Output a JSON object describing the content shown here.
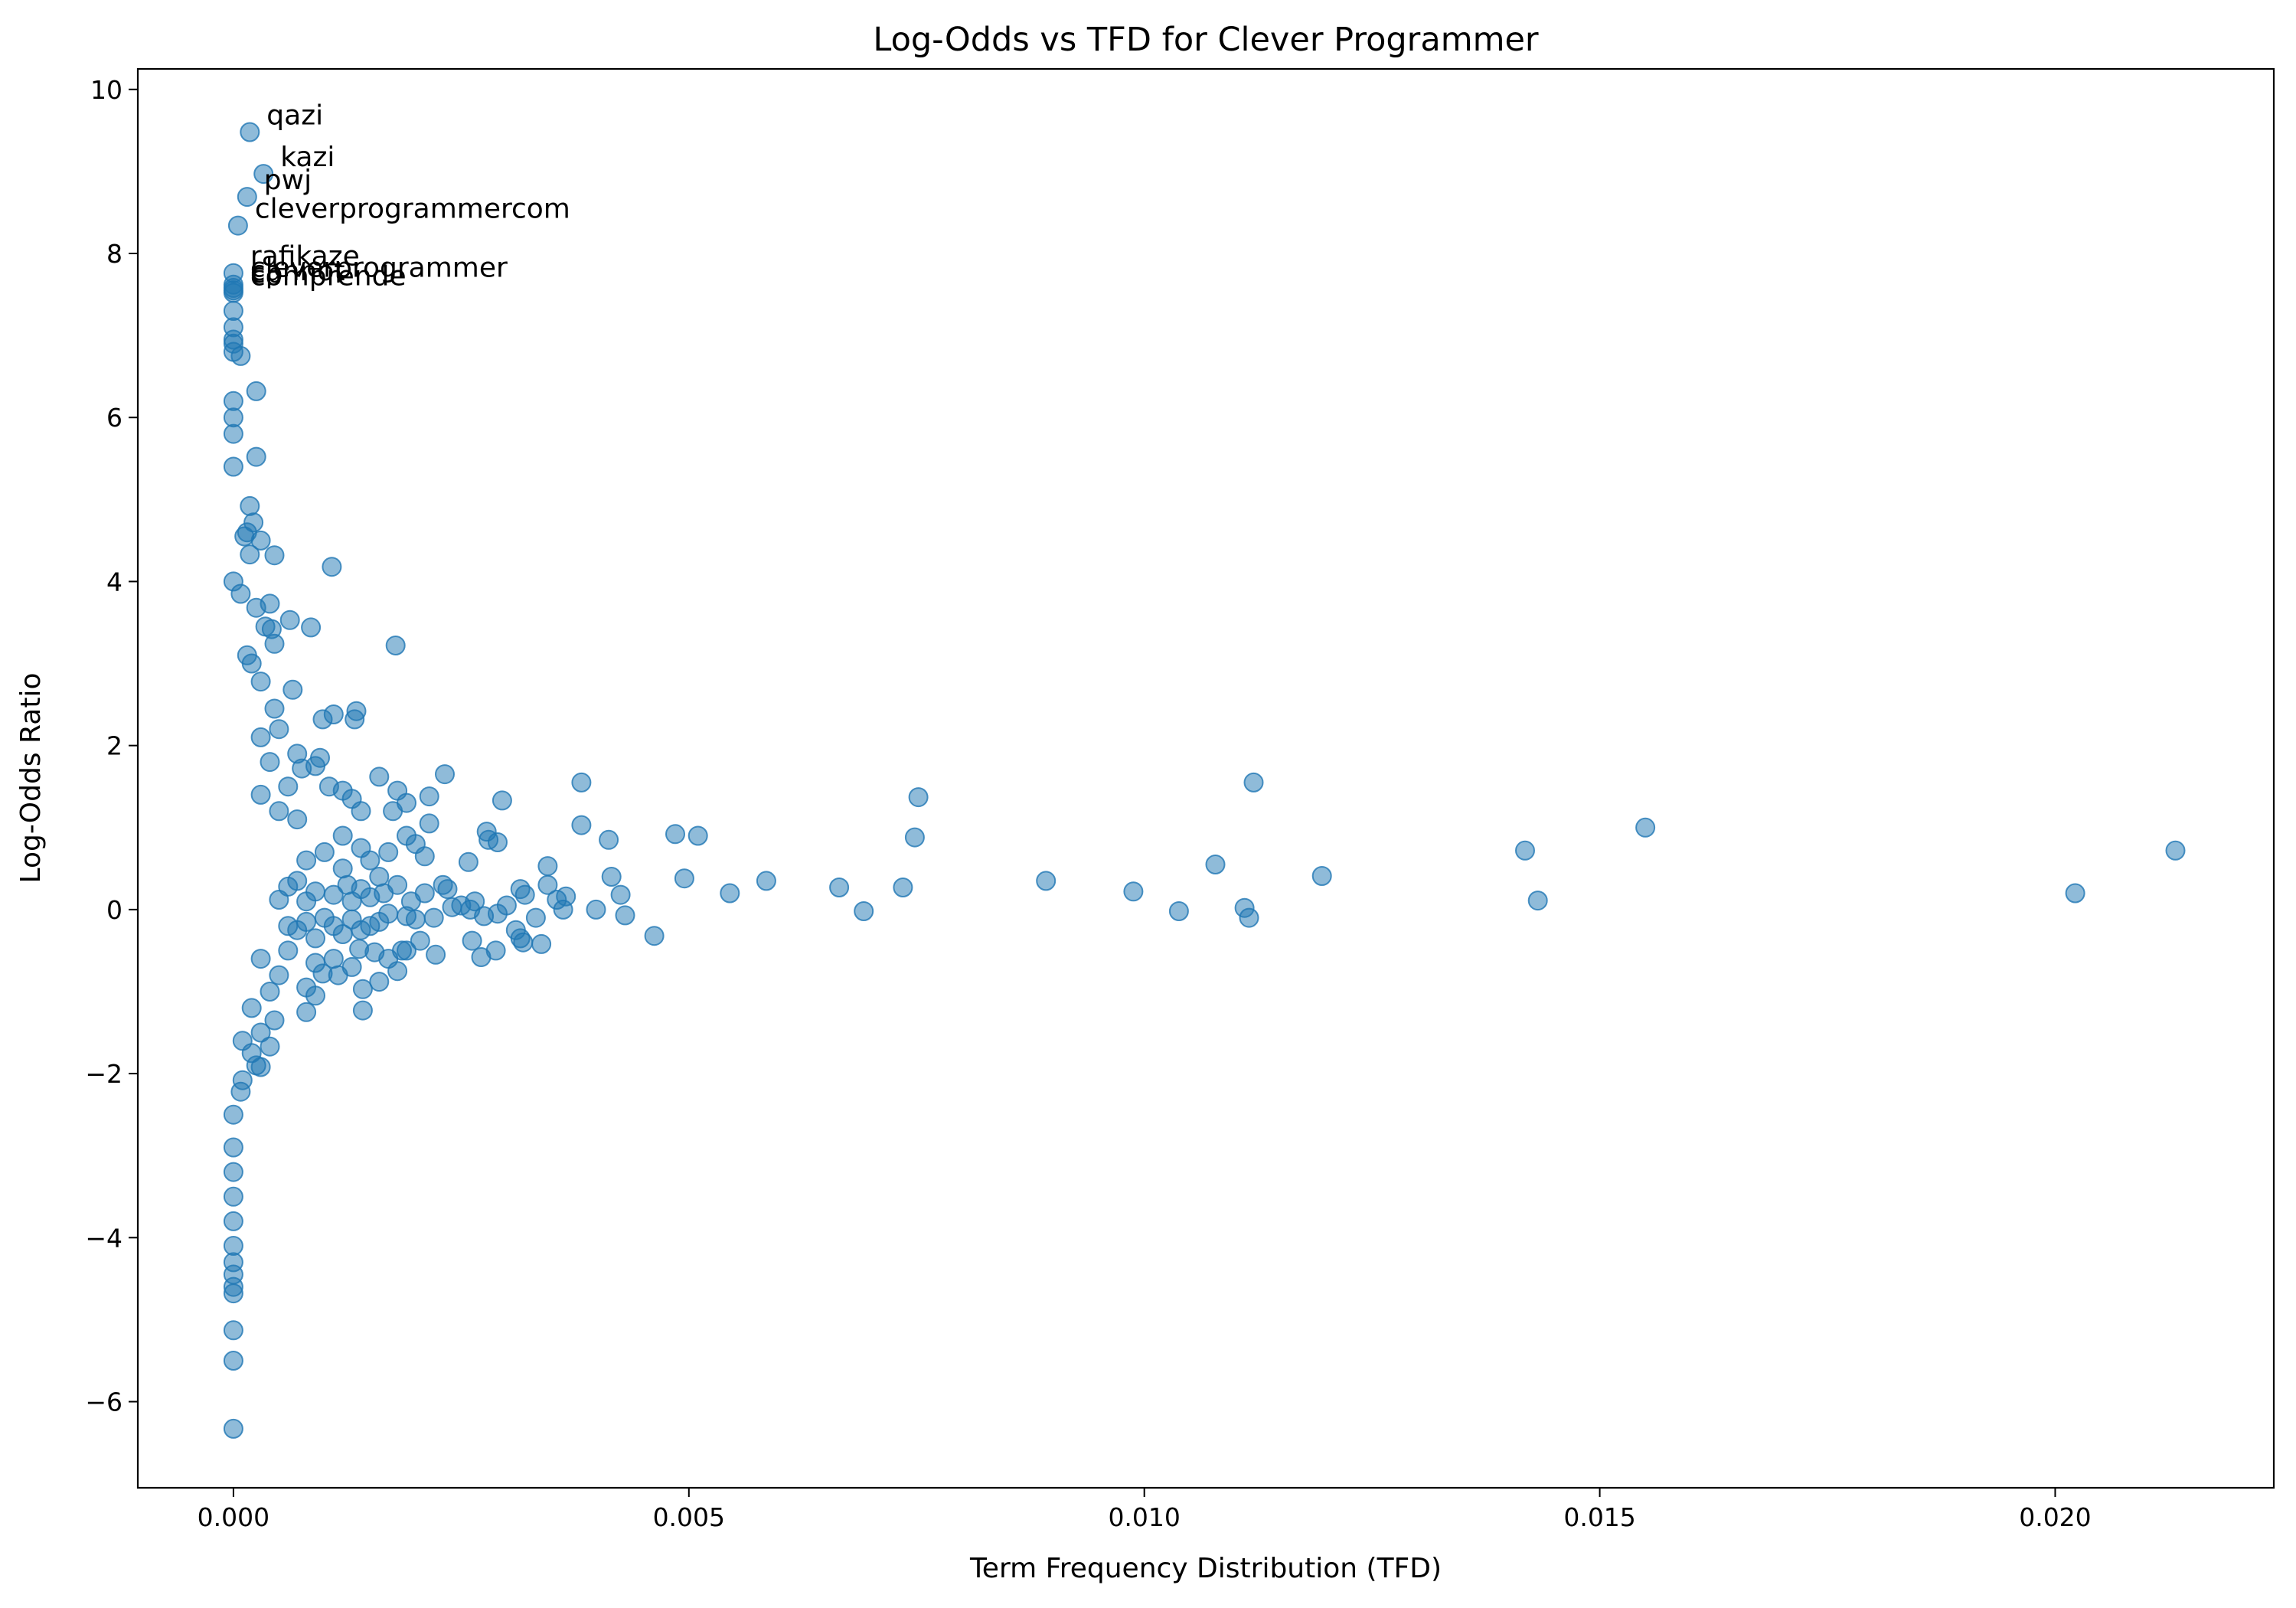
{
  "chart_data": {
    "type": "scatter",
    "title": "Log-Odds vs TFD for Clever Programmer",
    "xlabel": "Term Frequency Distribution (TFD)",
    "ylabel": "Log-Odds Ratio",
    "xlim": [
      -0.00105,
      0.0224
    ],
    "ylim": [
      -7.05,
      10.25
    ],
    "xticks": [
      0.0,
      0.005,
      0.01,
      0.015,
      0.02
    ],
    "xtick_labels": [
      "0.000",
      "0.005",
      "0.010",
      "0.015",
      "0.020"
    ],
    "yticks": [
      -6,
      -4,
      -2,
      0,
      2,
      4,
      6,
      8,
      10
    ],
    "ytick_labels": [
      "−6",
      "−4",
      "−2",
      "0",
      "2",
      "4",
      "6",
      "8",
      "10"
    ],
    "grid": false,
    "legend": "none",
    "marker_color": "#1f77b4",
    "marker_alpha": 0.5,
    "annotations": [
      {
        "text": "qazi",
        "x": 0.00018,
        "y": 9.48
      },
      {
        "text": "kazi",
        "x": 0.00033,
        "y": 8.97
      },
      {
        "text": "pwj",
        "x": 0.00015,
        "y": 8.69
      },
      {
        "text": "cleverprogrammercom",
        "x": 5e-05,
        "y": 8.34
      },
      {
        "text": "rafikaze",
        "x": 0.0,
        "y": 7.76
      },
      {
        "text": "cleverprogrammer",
        "x": 0.0,
        "y": 7.62
      },
      {
        "text": "cannot",
        "x": 0.0,
        "y": 7.58
      },
      {
        "text": "cp",
        "x": 0.0,
        "y": 7.55
      },
      {
        "text": "comprende",
        "x": 0.0,
        "y": 7.52
      }
    ],
    "points": [
      [
        0.00018,
        9.48
      ],
      [
        0.00033,
        8.97
      ],
      [
        0.00015,
        8.69
      ],
      [
        5e-05,
        8.34
      ],
      [
        0.0,
        7.76
      ],
      [
        0.0,
        7.62
      ],
      [
        0.0,
        7.58
      ],
      [
        0.0,
        7.55
      ],
      [
        0.0,
        7.52
      ],
      [
        0.0,
        7.3
      ],
      [
        0.0,
        7.1
      ],
      [
        0.0,
        6.95
      ],
      [
        0.0,
        6.9
      ],
      [
        0.0,
        6.8
      ],
      [
        8e-05,
        6.75
      ],
      [
        0.00025,
        6.32
      ],
      [
        0.0,
        6.2
      ],
      [
        0.0,
        6.0
      ],
      [
        0.0,
        5.8
      ],
      [
        0.00025,
        5.52
      ],
      [
        0.0,
        5.4
      ],
      [
        0.00018,
        4.92
      ],
      [
        0.00022,
        4.72
      ],
      [
        0.00015,
        4.6
      ],
      [
        0.00012,
        4.55
      ],
      [
        0.0003,
        4.5
      ],
      [
        0.00045,
        4.32
      ],
      [
        0.00018,
        4.33
      ],
      [
        0.00108,
        4.18
      ],
      [
        0.0,
        4.0
      ],
      [
        8e-05,
        3.85
      ],
      [
        0.0004,
        3.73
      ],
      [
        0.00025,
        3.68
      ],
      [
        0.00062,
        3.53
      ],
      [
        0.00035,
        3.45
      ],
      [
        0.00042,
        3.42
      ],
      [
        0.00085,
        3.44
      ],
      [
        0.00045,
        3.24
      ],
      [
        0.00178,
        3.22
      ],
      [
        0.00015,
        3.1
      ],
      [
        0.0002,
        3.0
      ],
      [
        0.0003,
        2.78
      ],
      [
        0.00065,
        2.68
      ],
      [
        0.00045,
        2.45
      ],
      [
        0.00135,
        2.42
      ],
      [
        0.0011,
        2.38
      ],
      [
        0.00098,
        2.32
      ],
      [
        0.00133,
        2.32
      ],
      [
        0.0005,
        2.2
      ],
      [
        0.0003,
        2.1
      ],
      [
        0.0007,
        1.9
      ],
      [
        0.00095,
        1.85
      ],
      [
        0.00075,
        1.72
      ],
      [
        0.0009,
        1.75
      ],
      [
        0.0155,
        1.0
      ],
      [
        0.0016,
        1.62
      ],
      [
        0.00232,
        1.65
      ],
      [
        0.0112,
        1.55
      ],
      [
        0.00105,
        1.5
      ],
      [
        0.0012,
        1.45
      ],
      [
        0.0013,
        1.35
      ],
      [
        0.0018,
        1.45
      ],
      [
        0.00215,
        1.38
      ],
      [
        0.00295,
        1.33
      ],
      [
        0.00382,
        1.55
      ],
      [
        0.00752,
        1.37
      ],
      [
        0.00175,
        1.2
      ],
      [
        0.0014,
        1.2
      ],
      [
        0.00215,
        1.05
      ],
      [
        0.0019,
        1.3
      ],
      [
        0.00278,
        0.95
      ],
      [
        0.00382,
        1.03
      ],
      [
        0.00485,
        0.92
      ],
      [
        0.0051,
        0.9
      ],
      [
        0.00412,
        0.85
      ],
      [
        0.00748,
        0.88
      ],
      [
        0.0028,
        0.85
      ],
      [
        0.0029,
        0.82
      ],
      [
        0.0019,
        0.9
      ],
      [
        0.002,
        0.8
      ],
      [
        0.0017,
        0.7
      ],
      [
        0.00258,
        0.58
      ],
      [
        0.00345,
        0.53
      ],
      [
        0.01078,
        0.55
      ],
      [
        0.01418,
        0.72
      ],
      [
        0.02132,
        0.72
      ],
      [
        0.00415,
        0.4
      ],
      [
        0.00495,
        0.38
      ],
      [
        0.00585,
        0.35
      ],
      [
        0.00892,
        0.35
      ],
      [
        0.01195,
        0.41
      ],
      [
        0.00545,
        0.2
      ],
      [
        0.00665,
        0.27
      ],
      [
        0.00735,
        0.27
      ],
      [
        0.00988,
        0.22
      ],
      [
        0.02022,
        0.2
      ],
      [
        0.01432,
        0.11
      ],
      [
        0.00425,
        0.18
      ],
      [
        0.00315,
        0.25
      ],
      [
        0.00365,
        0.16
      ],
      [
        0.00355,
        0.12
      ],
      [
        0.00345,
        0.3
      ],
      [
        0.0032,
        0.18
      ],
      [
        0.003,
        0.05
      ],
      [
        0.00265,
        0.1
      ],
      [
        0.0025,
        0.05
      ],
      [
        0.00235,
        0.25
      ],
      [
        0.0021,
        0.2
      ],
      [
        0.00195,
        0.1
      ],
      [
        0.0018,
        0.3
      ],
      [
        0.00165,
        0.2
      ],
      [
        0.0015,
        0.15
      ],
      [
        0.0014,
        0.25
      ],
      [
        0.0013,
        0.1
      ],
      [
        0.00125,
        0.3
      ],
      [
        0.0011,
        0.18
      ],
      [
        0.0009,
        0.22
      ],
      [
        0.0008,
        0.1
      ],
      [
        0.0007,
        0.35
      ],
      [
        0.0006,
        0.28
      ],
      [
        0.0005,
        0.12
      ],
      [
        0.00398,
        0.0
      ],
      [
        0.00692,
        -0.02
      ],
      [
        0.01038,
        -0.02
      ],
      [
        0.0111,
        0.02
      ],
      [
        0.01115,
        -0.1
      ],
      [
        0.0043,
        -0.07
      ],
      [
        0.00362,
        0.0
      ],
      [
        0.00332,
        -0.1
      ],
      [
        0.0031,
        -0.25
      ],
      [
        0.0029,
        -0.05
      ],
      [
        0.00275,
        -0.08
      ],
      [
        0.0026,
        0.0
      ],
      [
        0.0024,
        0.03
      ],
      [
        0.0022,
        -0.1
      ],
      [
        0.002,
        -0.12
      ],
      [
        0.0019,
        -0.08
      ],
      [
        0.0017,
        -0.05
      ],
      [
        0.0016,
        -0.15
      ],
      [
        0.0015,
        -0.2
      ],
      [
        0.0014,
        -0.25
      ],
      [
        0.0013,
        -0.12
      ],
      [
        0.0012,
        -0.3
      ],
      [
        0.0011,
        -0.2
      ],
      [
        0.001,
        -0.1
      ],
      [
        0.0009,
        -0.35
      ],
      [
        0.0008,
        -0.15
      ],
      [
        0.0007,
        -0.25
      ],
      [
        0.0006,
        -0.2
      ],
      [
        0.00462,
        -0.32
      ],
      [
        0.00315,
        -0.35
      ],
      [
        0.00338,
        -0.42
      ],
      [
        0.00318,
        -0.4
      ],
      [
        0.00262,
        -0.38
      ],
      [
        0.00288,
        -0.5
      ],
      [
        0.00272,
        -0.58
      ],
      [
        0.00222,
        -0.55
      ],
      [
        0.00205,
        -0.38
      ],
      [
        0.00185,
        -0.5
      ],
      [
        0.0017,
        -0.6
      ],
      [
        0.0019,
        -0.5
      ],
      [
        0.00155,
        -0.52
      ],
      [
        0.00138,
        -0.48
      ],
      [
        0.0018,
        -0.75
      ],
      [
        0.0016,
        -0.88
      ],
      [
        0.00142,
        -0.97
      ],
      [
        0.00115,
        -0.8
      ],
      [
        0.00098,
        -0.78
      ],
      [
        0.0008,
        -0.95
      ],
      [
        0.0009,
        -1.05
      ],
      [
        0.0008,
        -1.25
      ],
      [
        0.00142,
        -1.23
      ],
      [
        0.00045,
        -1.35
      ],
      [
        0.0004,
        -1.67
      ],
      [
        0.0003,
        -1.92
      ],
      [
        0.00025,
        -1.9
      ],
      [
        0.0002,
        -1.75
      ],
      [
        0.0001,
        -2.08
      ],
      [
        8e-05,
        -2.22
      ],
      [
        0.0,
        -2.5
      ],
      [
        0.0,
        -2.9
      ],
      [
        0.0,
        -3.2
      ],
      [
        0.0,
        -3.5
      ],
      [
        0.0,
        -3.8
      ],
      [
        0.0,
        -4.1
      ],
      [
        0.0,
        -4.3
      ],
      [
        0.0,
        -4.45
      ],
      [
        0.0,
        -4.6
      ],
      [
        0.0,
        -4.68
      ],
      [
        0.0,
        -5.13
      ],
      [
        0.0,
        -5.5
      ],
      [
        0.0,
        -6.33
      ],
      [
        0.0005,
        1.2
      ],
      [
        0.0006,
        1.5
      ],
      [
        0.0004,
        1.8
      ],
      [
        0.0003,
        1.4
      ],
      [
        0.0007,
        1.1
      ],
      [
        0.0008,
        0.6
      ],
      [
        0.001,
        0.7
      ],
      [
        0.0012,
        0.5
      ],
      [
        0.0015,
        0.6
      ],
      [
        0.0003,
        -0.6
      ],
      [
        0.0005,
        -0.8
      ],
      [
        0.0006,
        -0.5
      ],
      [
        0.0004,
        -1.0
      ],
      [
        0.0002,
        -1.2
      ],
      [
        0.0003,
        -1.5
      ],
      [
        0.0001,
        -1.6
      ],
      [
        0.0012,
        0.9
      ],
      [
        0.0014,
        0.75
      ],
      [
        0.0016,
        0.4
      ],
      [
        0.0021,
        0.65
      ],
      [
        0.0023,
        0.3
      ],
      [
        0.0011,
        -0.6
      ],
      [
        0.0013,
        -0.7
      ],
      [
        0.0009,
        -0.65
      ]
    ]
  }
}
